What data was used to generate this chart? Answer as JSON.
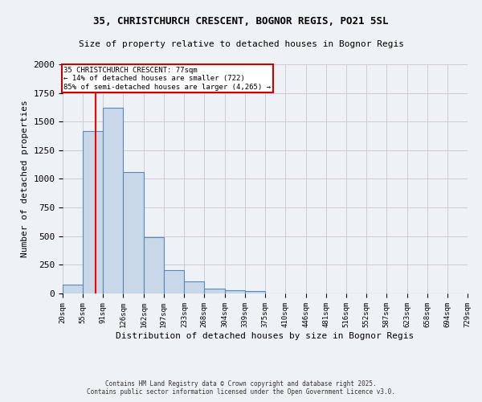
{
  "title1": "35, CHRISTCHURCH CRESCENT, BOGNOR REGIS, PO21 5SL",
  "title2": "Size of property relative to detached houses in Bognor Regis",
  "xlabel": "Distribution of detached houses by size in Bognor Regis",
  "ylabel": "Number of detached properties",
  "bin_edges": [
    20,
    55,
    91,
    126,
    162,
    197,
    233,
    268,
    304,
    339,
    375,
    410,
    446,
    481,
    516,
    552,
    587,
    623,
    658,
    694,
    729
  ],
  "bar_heights": [
    80,
    1420,
    1620,
    1060,
    490,
    205,
    105,
    40,
    30,
    20,
    0,
    0,
    0,
    0,
    0,
    0,
    0,
    0,
    0,
    0
  ],
  "bar_color": "#c8d8e8",
  "bar_edge_color": "#5588bb",
  "red_line_x": 77,
  "ylim": [
    0,
    2000
  ],
  "annotation_text": "35 CHRISTCHURCH CRESCENT: 77sqm\n← 14% of detached houses are smaller (722)\n85% of semi-detached houses are larger (4,265) →",
  "annotation_box_color": "#ffffff",
  "annotation_box_edge": "#cc0000",
  "footer1": "Contains HM Land Registry data © Crown copyright and database right 2025.",
  "footer2": "Contains public sector information licensed under the Open Government Licence v3.0.",
  "bg_color": "#eef2f7",
  "grid_color": "#cccccc",
  "title1_fontsize": 9,
  "title2_fontsize": 8,
  "tick_label_fontsize": 6.5,
  "ylabel_fontsize": 8,
  "xlabel_fontsize": 8,
  "annotation_fontsize": 6.5,
  "footer_fontsize": 5.5
}
